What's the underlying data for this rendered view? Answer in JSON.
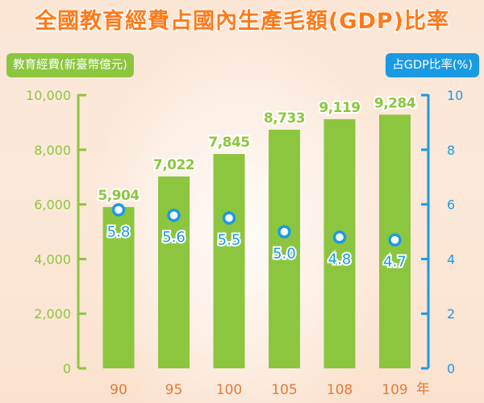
{
  "chart_data": {
    "type": "bar",
    "title": "全國教育經費占國內生產毛額(GDP)比率",
    "categories": [
      "90",
      "95",
      "100",
      "105",
      "108",
      "109"
    ],
    "x_unit": "年",
    "series": [
      {
        "name": "教育經費(新臺幣億元)",
        "type": "bar",
        "axis": "left",
        "values": [
          5904,
          7022,
          7845,
          8733,
          9119,
          9284
        ],
        "value_labels": [
          "5,904",
          "7,022",
          "7,845",
          "8,733",
          "9,119",
          "9,284"
        ]
      },
      {
        "name": "占GDP比率(%)",
        "type": "scatter",
        "axis": "right",
        "values": [
          5.8,
          5.6,
          5.5,
          5.0,
          4.8,
          4.7
        ],
        "value_labels": [
          "5.8",
          "5.6",
          "5.5",
          "5.0",
          "4.8",
          "4.7"
        ]
      }
    ],
    "y_left": {
      "ylabel": "教育經費(新臺幣億元)",
      "ylim": [
        0,
        10000
      ],
      "ticks": [
        0,
        2000,
        4000,
        6000,
        8000,
        10000
      ],
      "tick_labels": [
        "0",
        "2,000",
        "4,000",
        "6,000",
        "8,000",
        "10,000"
      ]
    },
    "y_right": {
      "ylabel": "占GDP比率(%)",
      "ylim": [
        0,
        10
      ],
      "ticks": [
        0,
        2,
        4,
        6,
        8,
        10
      ],
      "tick_labels": [
        "0",
        "2",
        "4",
        "6",
        "8",
        "10"
      ]
    },
    "grid": false,
    "legend": "none",
    "colors": {
      "bars": "#8cc63f",
      "ratio": "#1b9ae4",
      "title": "#ff7a1a",
      "xlabels": "#e07b39"
    }
  }
}
